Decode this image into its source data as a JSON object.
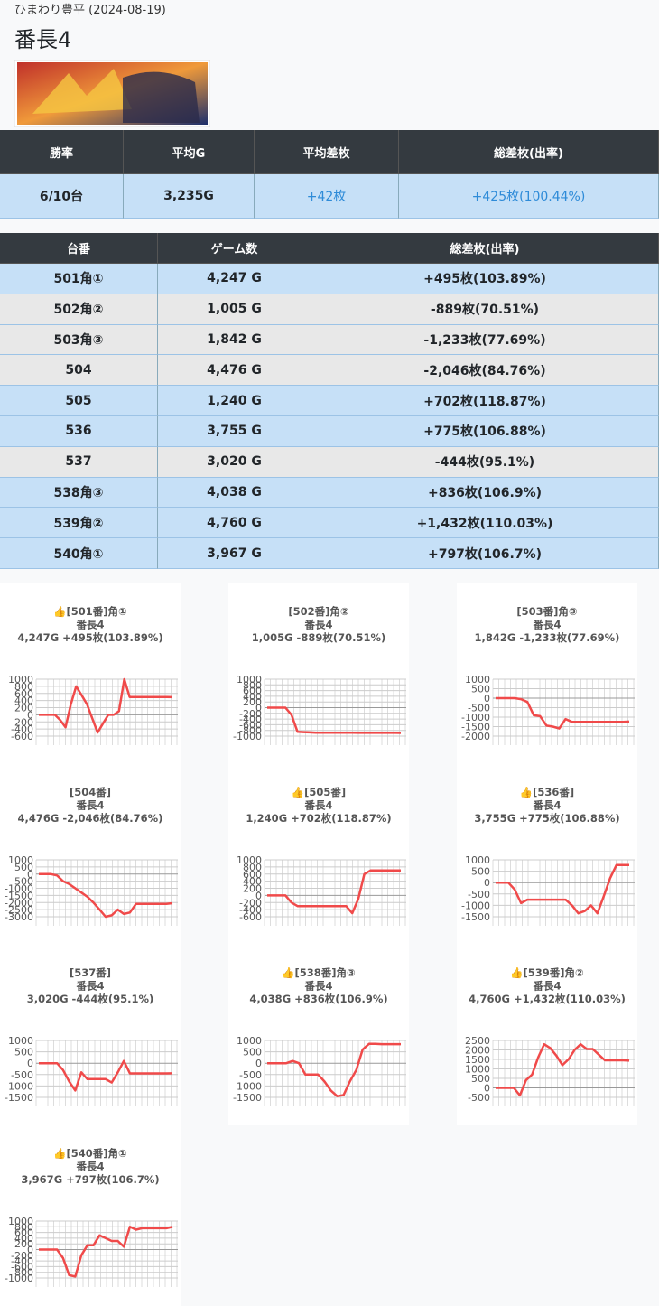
{
  "header": {
    "shop_date": "ひまわり豊平 (2024-08-19)",
    "title": "番長4"
  },
  "summary": {
    "columns": [
      "勝率",
      "平均G",
      "平均差枚",
      "総差枚(出率)"
    ],
    "row": [
      "6/10台",
      "3,235G",
      "+42枚",
      "+425枚(100.44%)"
    ]
  },
  "table": {
    "columns": [
      "台番",
      "ゲーム数",
      "総差枚(出率)"
    ],
    "rows": [
      {
        "cells": [
          "501角①",
          "4,247 G",
          "+495枚(103.89%)"
        ],
        "color": "#c6e0f7"
      },
      {
        "cells": [
          "502角②",
          "1,005 G",
          "-889枚(70.51%)"
        ],
        "color": "#e8e8e8"
      },
      {
        "cells": [
          "503角③",
          "1,842 G",
          "-1,233枚(77.69%)"
        ],
        "color": "#e8e8e8"
      },
      {
        "cells": [
          "504",
          "4,476 G",
          "-2,046枚(84.76%)"
        ],
        "color": "#e8e8e8"
      },
      {
        "cells": [
          "505",
          "1,240 G",
          "+702枚(118.87%)"
        ],
        "color": "#c6e0f7"
      },
      {
        "cells": [
          "536",
          "3,755 G",
          "+775枚(106.88%)"
        ],
        "color": "#c6e0f7"
      },
      {
        "cells": [
          "537",
          "3,020 G",
          "-444枚(95.1%)"
        ],
        "color": "#e8e8e8"
      },
      {
        "cells": [
          "538角③",
          "4,038 G",
          "+836枚(106.9%)"
        ],
        "color": "#c6e0f7"
      },
      {
        "cells": [
          "539角②",
          "4,760 G",
          "+1,432枚(110.03%)"
        ],
        "color": "#c6e0f7"
      },
      {
        "cells": [
          "540角①",
          "3,967 G",
          "+797枚(106.7%)"
        ],
        "color": "#c6e0f7"
      }
    ]
  },
  "chart_data": [
    {
      "type": "line",
      "title": "👍[501番]角①",
      "subtitle": "番長4",
      "annotation": "4,247G +495枚(103.89%)",
      "color": "#f04a4a",
      "ylim": [
        -600,
        1000
      ],
      "yticks": [
        1000,
        800,
        600,
        400,
        200,
        0,
        -200,
        -400,
        -600
      ],
      "values": [
        0,
        0,
        0,
        0,
        -150,
        -350,
        300,
        800,
        550,
        300,
        -100,
        -500,
        -250,
        0,
        0,
        100,
        1000,
        500,
        500,
        500,
        500,
        500,
        500,
        500,
        500,
        495
      ]
    },
    {
      "type": "line",
      "title": "[502番]角②",
      "subtitle": "番長4",
      "annotation": "1,005G -889枚(70.51%)",
      "color": "#f04a4a",
      "ylim": [
        -1000,
        1000
      ],
      "yticks": [
        1000,
        800,
        600,
        400,
        200,
        0,
        -200,
        -400,
        -600,
        -800,
        -1000
      ],
      "values": [
        0,
        0,
        0,
        0,
        -250,
        -850,
        -860,
        -870,
        -880,
        -880,
        -880,
        -880,
        -880,
        -880,
        -880,
        -885,
        -885,
        -885,
        -885,
        -885,
        -885,
        -885,
        -889
      ]
    },
    {
      "type": "line",
      "title": "[503番]角③",
      "subtitle": "番長4",
      "annotation": "1,842G -1,233枚(77.69%)",
      "color": "#f04a4a",
      "ylim": [
        -2000,
        1000
      ],
      "yticks": [
        1000,
        500,
        0,
        -500,
        -1000,
        -1500,
        -2000
      ],
      "values": [
        0,
        0,
        0,
        0,
        -50,
        -200,
        -900,
        -950,
        -1450,
        -1500,
        -1600,
        -1100,
        -1250,
        -1250,
        -1250,
        -1250,
        -1250,
        -1250,
        -1250,
        -1250,
        -1250,
        -1233
      ]
    },
    {
      "type": "line",
      "title": "[504番]",
      "subtitle": "番長4",
      "annotation": "4,476G -2,046枚(84.76%)",
      "color": "#f04a4a",
      "ylim": [
        -3000,
        1000
      ],
      "yticks": [
        1000,
        500,
        0,
        -500,
        -1000,
        -1500,
        -2000,
        -2500,
        -3000
      ],
      "values": [
        0,
        0,
        0,
        -100,
        -500,
        -700,
        -1000,
        -1300,
        -1600,
        -2000,
        -2500,
        -3000,
        -2900,
        -2500,
        -2800,
        -2700,
        -2100,
        -2100,
        -2100,
        -2100,
        -2100,
        -2100,
        -2046
      ]
    },
    {
      "type": "line",
      "title": "👍[505番]",
      "subtitle": "番長4",
      "annotation": "1,240G +702枚(118.87%)",
      "color": "#f04a4a",
      "ylim": [
        -600,
        1000
      ],
      "yticks": [
        1000,
        800,
        600,
        400,
        200,
        0,
        -200,
        -400,
        -600
      ],
      "values": [
        0,
        0,
        0,
        0,
        -200,
        -300,
        -300,
        -300,
        -300,
        -300,
        -300,
        -300,
        -300,
        -300,
        -500,
        -100,
        600,
        700,
        700,
        700,
        700,
        700,
        702
      ]
    },
    {
      "type": "line",
      "title": "👍[536番]",
      "subtitle": "番長4",
      "annotation": "3,755G +775枚(106.88%)",
      "color": "#f04a4a",
      "ylim": [
        -1500,
        1000
      ],
      "yticks": [
        1000,
        500,
        0,
        -500,
        -1000,
        -1500
      ],
      "values": [
        0,
        0,
        0,
        -300,
        -900,
        -750,
        -750,
        -750,
        -750,
        -750,
        -750,
        -750,
        -1000,
        -1350,
        -1250,
        -1000,
        -1350,
        -600,
        200,
        775,
        775,
        775
      ]
    },
    {
      "type": "line",
      "title": "[537番]",
      "subtitle": "番長4",
      "annotation": "3,020G -444枚(95.1%)",
      "color": "#f04a4a",
      "ylim": [
        -1500,
        1000
      ],
      "yticks": [
        1000,
        500,
        0,
        -500,
        -1000,
        -1500
      ],
      "values": [
        0,
        0,
        0,
        0,
        -300,
        -800,
        -1200,
        -400,
        -700,
        -700,
        -700,
        -700,
        -850,
        -400,
        100,
        -450,
        -450,
        -450,
        -450,
        -450,
        -450,
        -450,
        -444
      ]
    },
    {
      "type": "line",
      "title": "👍[538番]角③",
      "subtitle": "番長4",
      "annotation": "4,038G +836枚(106.9%)",
      "color": "#f04a4a",
      "ylim": [
        -1500,
        1000
      ],
      "yticks": [
        1000,
        500,
        0,
        -500,
        -1000,
        -1500
      ],
      "values": [
        0,
        0,
        0,
        0,
        100,
        0,
        -500,
        -500,
        -500,
        -800,
        -1200,
        -1450,
        -1400,
        -800,
        -300,
        600,
        850,
        850,
        836,
        836,
        836,
        836
      ]
    },
    {
      "type": "line",
      "title": "👍[539番]角②",
      "subtitle": "番長4",
      "annotation": "4,760G +1,432枚(110.03%)",
      "color": "#f04a4a",
      "ylim": [
        -500,
        2500
      ],
      "yticks": [
        2500,
        2000,
        1500,
        1000,
        500,
        0,
        -500
      ],
      "values": [
        0,
        0,
        0,
        0,
        -400,
        400,
        700,
        1600,
        2300,
        2100,
        1700,
        1200,
        1500,
        2000,
        2300,
        2050,
        2050,
        1750,
        1450,
        1450,
        1450,
        1450,
        1432
      ]
    },
    {
      "type": "line",
      "title": "👍[540番]角①",
      "subtitle": "番長4",
      "annotation": "3,967G +797枚(106.7%)",
      "color": "#f04a4a",
      "ylim": [
        -1000,
        1000
      ],
      "yticks": [
        1000,
        800,
        600,
        400,
        200,
        0,
        -200,
        -400,
        -600,
        -800,
        -1000
      ],
      "values": [
        0,
        0,
        0,
        0,
        -300,
        -900,
        -950,
        -200,
        150,
        150,
        500,
        400,
        300,
        300,
        100,
        800,
        700,
        750,
        750,
        750,
        750,
        750,
        797
      ]
    }
  ]
}
